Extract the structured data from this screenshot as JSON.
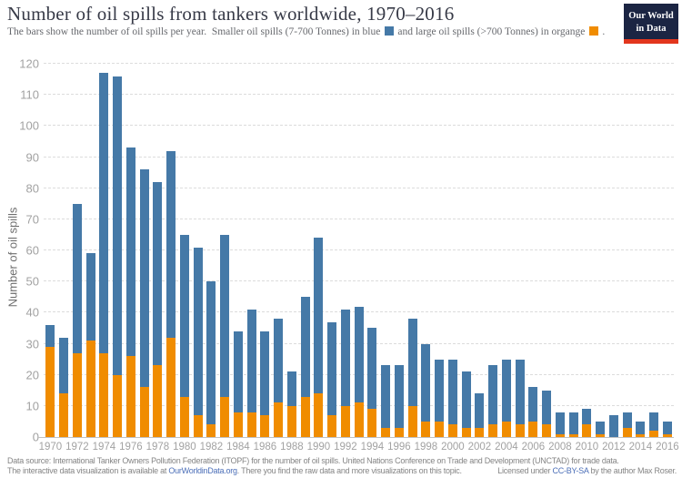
{
  "header": {
    "title": "Number of oil spills from tankers worldwide, 1970–2016",
    "subtitle": {
      "part1": "The bars show the number of oil spills per year.  Smaller oil spills (7-700 Tonnes) in blue",
      "part2": "and large oil spills (>700 Tonnes) in organge",
      "part3": "."
    },
    "logo": {
      "line1": "Our World",
      "line2": "in Data"
    }
  },
  "chart_data": {
    "type": "bar",
    "stacked": true,
    "title": "Number of oil spills from tankers worldwide, 1970–2016",
    "ylabel": "Number of oil spills",
    "xlabel": "",
    "ylim": [
      0,
      120
    ],
    "yticks": [
      0,
      10,
      20,
      30,
      40,
      50,
      60,
      70,
      80,
      90,
      100,
      110,
      120
    ],
    "grid": "horizontal-dashed",
    "legend_position": "subtitle",
    "categories": [
      1970,
      1971,
      1972,
      1973,
      1974,
      1975,
      1976,
      1977,
      1978,
      1979,
      1980,
      1981,
      1982,
      1983,
      1984,
      1985,
      1986,
      1987,
      1988,
      1989,
      1990,
      1991,
      1992,
      1993,
      1994,
      1995,
      1996,
      1997,
      1998,
      1999,
      2000,
      2001,
      2002,
      2003,
      2004,
      2005,
      2006,
      2007,
      2008,
      2009,
      2010,
      2011,
      2012,
      2013,
      2014,
      2015,
      2016
    ],
    "xtick_labels": [
      "1970",
      "1972",
      "1974",
      "1976",
      "1978",
      "1980",
      "1982",
      "1984",
      "1986",
      "1988",
      "1990",
      "1992",
      "1994",
      "1996",
      "1998",
      "2000",
      "2002",
      "2004",
      "2006",
      "2008",
      "2010",
      "2012",
      "2014",
      "2016"
    ],
    "series": [
      {
        "name": "Large oil spills (>700 Tonnes)",
        "color": "#F08C00",
        "stack_order": "bottom",
        "values": [
          29,
          14,
          27,
          31,
          27,
          20,
          26,
          16,
          23,
          32,
          13,
          7,
          4,
          13,
          8,
          8,
          7,
          11,
          10,
          13,
          14,
          7,
          10,
          11,
          9,
          3,
          3,
          10,
          5,
          5,
          4,
          3,
          3,
          4,
          5,
          4,
          5,
          4,
          1,
          1,
          4,
          1,
          0,
          3,
          1,
          2,
          1
        ]
      },
      {
        "name": "Smaller oil spills (7-700 Tonnes)",
        "color": "#4579A7",
        "stack_order": "top",
        "values": [
          7,
          18,
          48,
          28,
          90,
          96,
          67,
          70,
          59,
          60,
          52,
          54,
          46,
          52,
          26,
          33,
          27,
          27,
          11,
          32,
          50,
          30,
          31,
          31,
          26,
          20,
          20,
          28,
          25,
          20,
          21,
          18,
          11,
          19,
          20,
          21,
          11,
          11,
          7,
          7,
          5,
          4,
          7,
          5,
          4,
          6,
          4
        ]
      }
    ],
    "totals": [
      36,
      32,
      75,
      59,
      117,
      116,
      93,
      86,
      82,
      92,
      65,
      61,
      50,
      65,
      34,
      41,
      34,
      38,
      21,
      45,
      64,
      37,
      41,
      42,
      35,
      23,
      23,
      38,
      30,
      25,
      25,
      21,
      14,
      23,
      25,
      25,
      16,
      15,
      8,
      8,
      9,
      5,
      7,
      8,
      5,
      8,
      5
    ]
  },
  "footer": {
    "line1": "Data source: International Tanker Owners Pollution Federation (ITOPF) for the number of oil spills. United Nations Conference on Trade and Development (UNCTAD) for trade data.",
    "line2_before_link": "The interactive data visualization is available at ",
    "line2_link": "OurWorldinData.org",
    "line2_after_link": ". There you find the raw data and more visualizations on this topic.",
    "license_before_link": "Licensed under ",
    "license_link": "CC-BY-SA",
    "license_after_link": " by the author Max Roser."
  },
  "colors": {
    "bar_small_blue": "#4579A7",
    "bar_large_orange": "#F08C00",
    "logo_navy": "#1B2543",
    "logo_red": "#E2361D",
    "link_blue": "#4C6FB8"
  }
}
